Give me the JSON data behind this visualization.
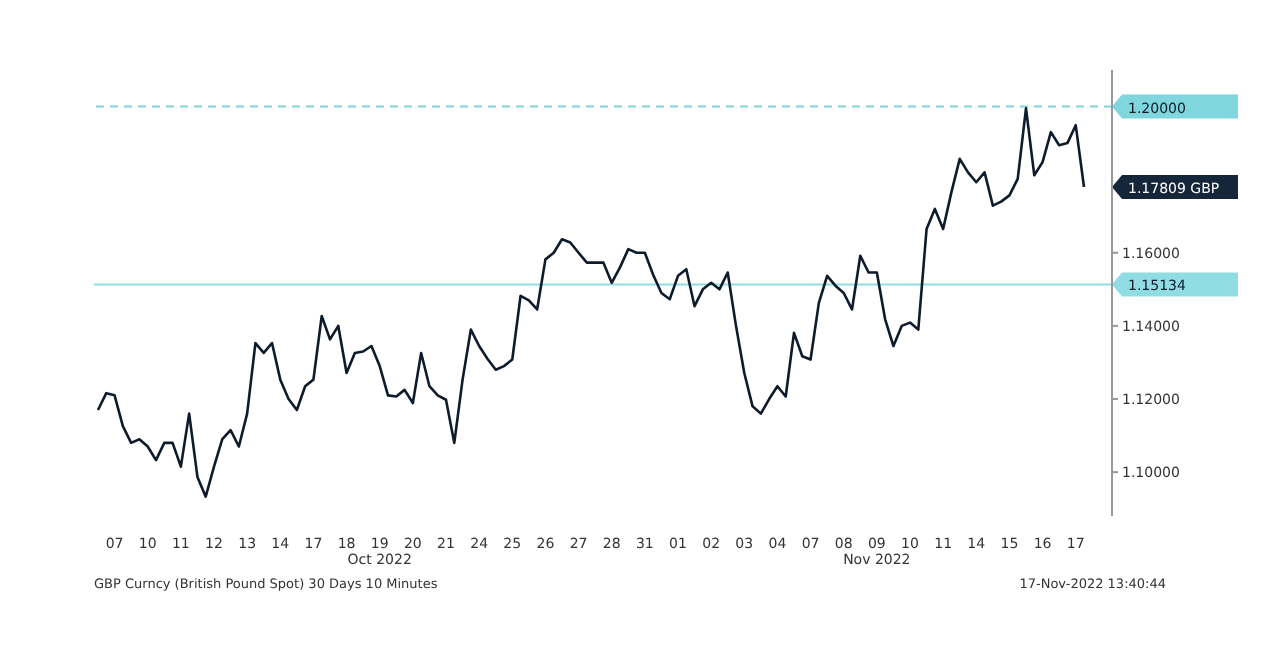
{
  "chart_data": {
    "type": "line",
    "ylim": [
      1.088,
      1.21
    ],
    "yticks": [
      {
        "value": 1.1,
        "label": "1.10000"
      },
      {
        "value": 1.12,
        "label": "1.12000"
      },
      {
        "value": 1.14,
        "label": "1.14000"
      },
      {
        "value": 1.16,
        "label": "1.16000"
      }
    ],
    "categories": [
      null,
      null,
      "07",
      null,
      null,
      null,
      "10",
      null,
      null,
      null,
      "11",
      null,
      null,
      null,
      "12",
      null,
      null,
      null,
      "13",
      null,
      null,
      null,
      "14",
      null,
      null,
      null,
      "17",
      null,
      null,
      null,
      "18",
      null,
      null,
      null,
      "19\nOct 2022",
      null,
      null,
      null,
      "20",
      null,
      null,
      null,
      "21",
      null,
      null,
      null,
      "24",
      null,
      null,
      null,
      "25",
      null,
      null,
      null,
      "26",
      null,
      null,
      null,
      "27",
      null,
      null,
      null,
      "28",
      null,
      null,
      null,
      "31",
      null,
      null,
      null,
      "01",
      null,
      null,
      null,
      "02",
      null,
      null,
      null,
      "03",
      null,
      null,
      null,
      "04",
      null,
      null,
      null,
      "07",
      null,
      null,
      null,
      "08",
      null,
      null,
      null,
      "09\nNov 2022",
      null,
      null,
      null,
      "10",
      null,
      null,
      null,
      "11",
      null,
      null,
      null,
      "14",
      null,
      null,
      null,
      "15",
      null,
      null,
      null,
      "16",
      null,
      null,
      null,
      "17",
      null
    ],
    "series": [
      {
        "color": "#0d1b2a",
        "values": [
          1.117,
          1.1216,
          1.121,
          1.1126,
          1.108,
          1.109,
          1.107,
          1.1033,
          1.108,
          1.108,
          1.1015,
          1.116,
          1.0987,
          1.0933,
          1.1015,
          1.109,
          1.1115,
          1.107,
          1.116,
          1.1353,
          1.1326,
          1.1353,
          1.1253,
          1.12,
          1.117,
          1.1235,
          1.1253,
          1.1427,
          1.1363,
          1.14,
          1.1271,
          1.1326,
          1.133,
          1.1345,
          1.129,
          1.121,
          1.1207,
          1.1225,
          1.1189,
          1.1326,
          1.1235,
          1.121,
          1.1198,
          1.108,
          1.1253,
          1.139,
          1.1345,
          1.131,
          1.128,
          1.129,
          1.1308,
          1.1482,
          1.147,
          1.1445,
          1.1582,
          1.16,
          1.1637,
          1.1628,
          1.16,
          1.1573,
          1.1573,
          1.1573,
          1.1518,
          1.156,
          1.161,
          1.16,
          1.16,
          1.154,
          1.149,
          1.1473,
          1.1537,
          1.1555,
          1.1454,
          1.15,
          1.1518,
          1.15,
          1.1546,
          1.14,
          1.1271,
          1.118,
          1.116,
          1.12,
          1.1235,
          1.1207,
          1.1381,
          1.1317,
          1.1308,
          1.1463,
          1.1537,
          1.151,
          1.149,
          1.1445,
          1.1592,
          1.1546,
          1.1546,
          1.1418,
          1.1345,
          1.14,
          1.1409,
          1.139,
          1.1665,
          1.172,
          1.1665,
          1.1766,
          1.1857,
          1.182,
          1.1793,
          1.182,
          1.1729,
          1.174,
          1.1757,
          1.1802,
          1.1995,
          1.1812,
          1.1848,
          1.193,
          1.1894,
          1.19,
          1.1949,
          1.178
        ]
      }
    ],
    "ref_lines": [
      {
        "axis": "y",
        "value": 1.2,
        "label": "1.20000",
        "color": "#7fd6dc",
        "line_style": "dashed"
      },
      {
        "axis": "y",
        "value": 1.15134,
        "label": "1.15134",
        "color": "#8fdde3",
        "line_style": "solid"
      }
    ],
    "annotations": [
      "1.17809 GBP",
      "GBP Curncy (British Pound Spot) 30 Days 10 Minutes",
      "17-Nov-2022 13:40:44"
    ],
    "grid": false,
    "legend": false,
    "marker": "none",
    "line_style": "solid"
  }
}
